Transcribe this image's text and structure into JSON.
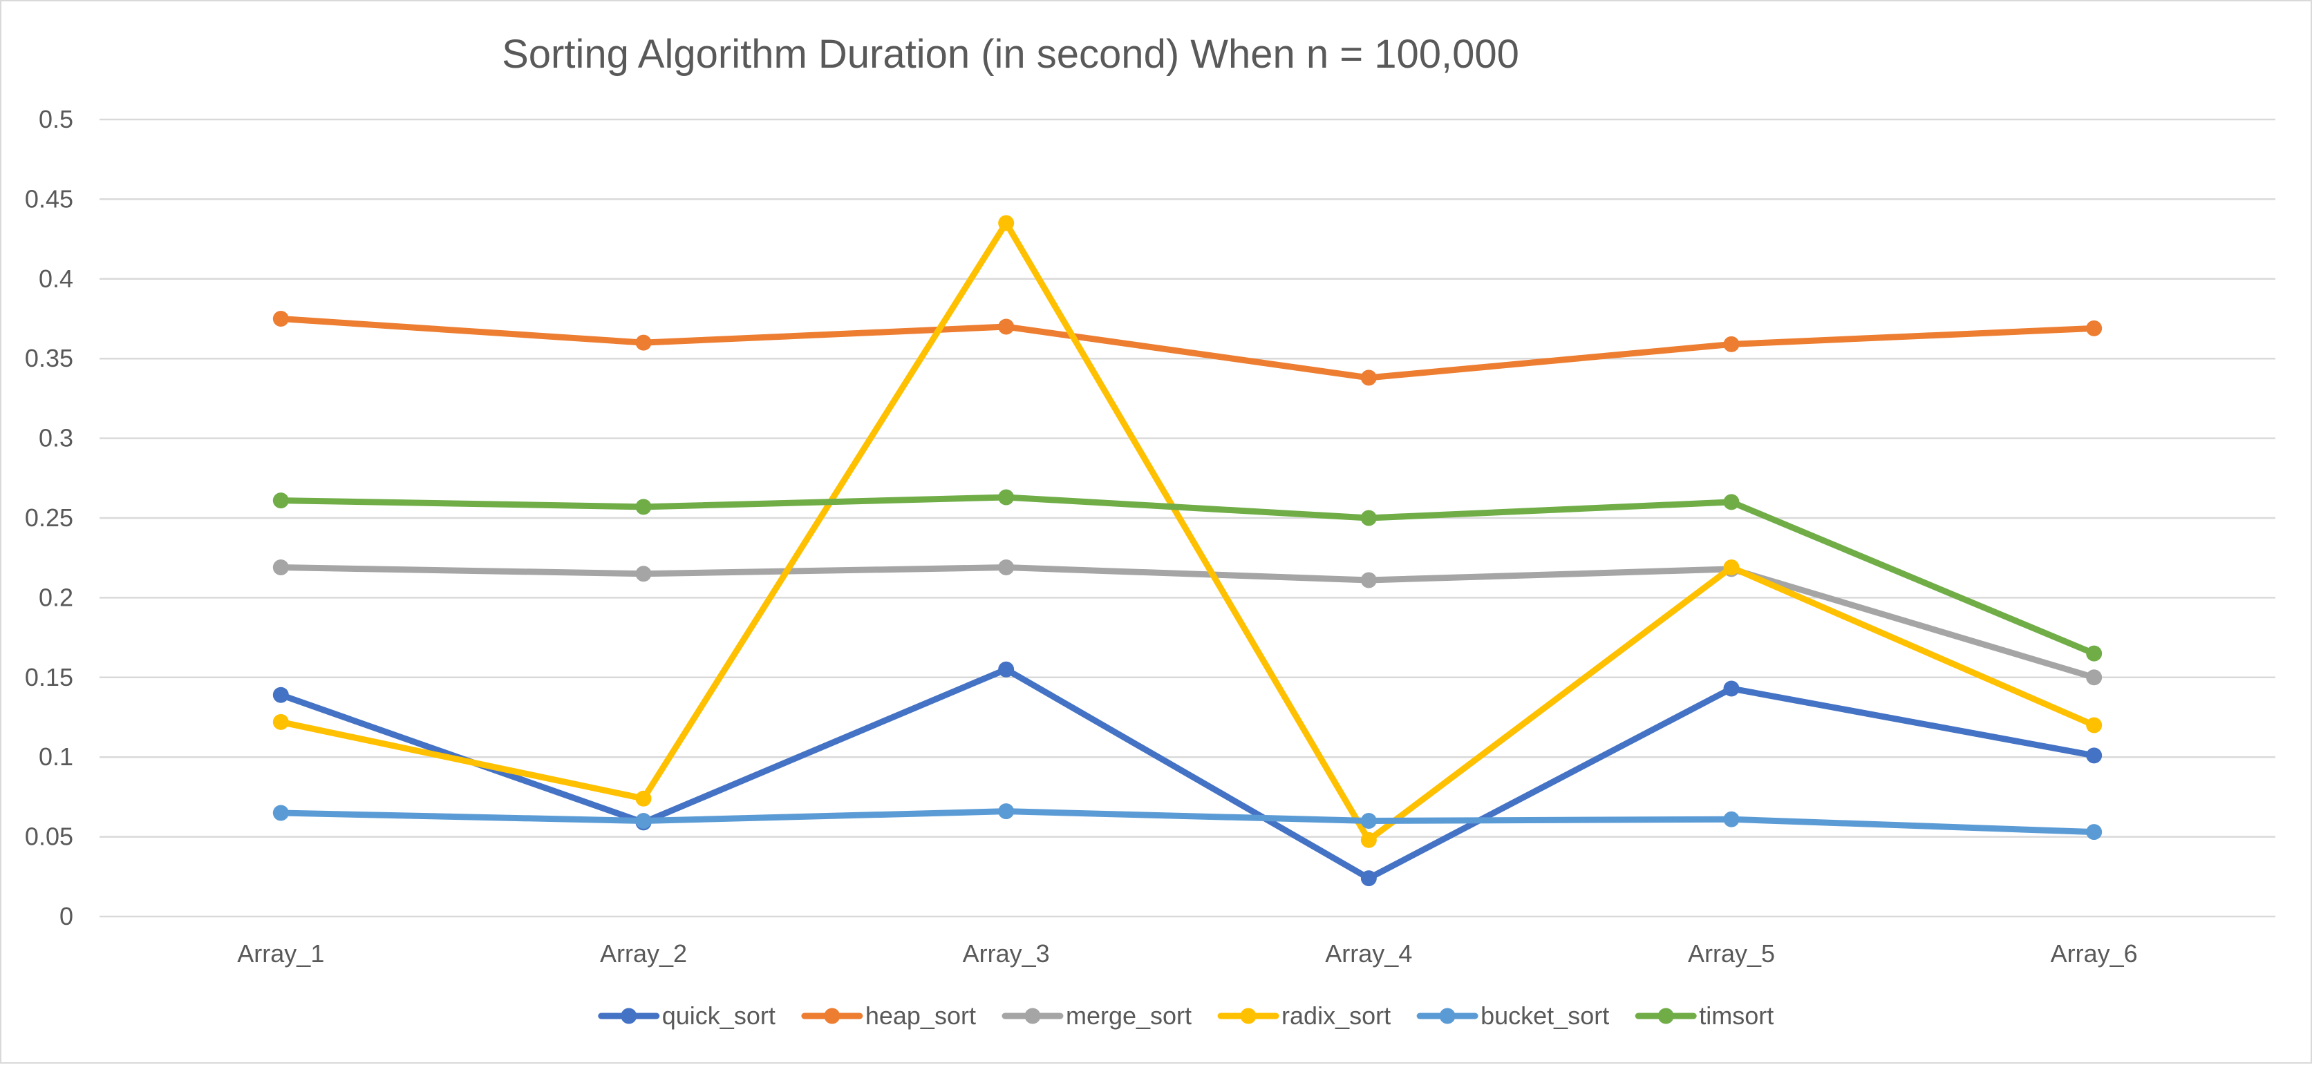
{
  "chart_data": {
    "type": "line",
    "title": "Sorting Algorithm Duration (in second) When n = 100,000",
    "xlabel": "",
    "ylabel": "",
    "categories": [
      "Array_1",
      "Array_2",
      "Array_3",
      "Array_4",
      "Array_5",
      "Array_6"
    ],
    "ylim": [
      0,
      0.5
    ],
    "yticks": [
      0,
      0.05,
      0.1,
      0.15,
      0.2,
      0.25,
      0.3,
      0.35,
      0.4,
      0.45,
      0.5
    ],
    "ytick_labels": [
      "0",
      "0.05",
      "0.1",
      "0.15",
      "0.2",
      "0.25",
      "0.3",
      "0.35",
      "0.4",
      "0.45",
      "0.5"
    ],
    "grid": true,
    "legend_position": "bottom",
    "series": [
      {
        "name": "quick_sort",
        "color": "#4472c4",
        "values": [
          0.139,
          0.059,
          0.155,
          0.024,
          0.143,
          0.101
        ]
      },
      {
        "name": "heap_sort",
        "color": "#ed7d31",
        "values": [
          0.375,
          0.36,
          0.37,
          0.338,
          0.359,
          0.369
        ]
      },
      {
        "name": "merge_sort",
        "color": "#a5a5a5",
        "values": [
          0.219,
          0.215,
          0.219,
          0.211,
          0.218,
          0.15
        ]
      },
      {
        "name": "radix_sort",
        "color": "#ffc000",
        "values": [
          0.122,
          0.074,
          0.435,
          0.048,
          0.219,
          0.12
        ]
      },
      {
        "name": "bucket_sort",
        "color": "#5b9bd5",
        "values": [
          0.065,
          0.06,
          0.066,
          0.06,
          0.061,
          0.053
        ]
      },
      {
        "name": "timsort",
        "color": "#70ad47",
        "values": [
          0.261,
          0.257,
          0.263,
          0.25,
          0.26,
          0.165
        ]
      }
    ]
  }
}
